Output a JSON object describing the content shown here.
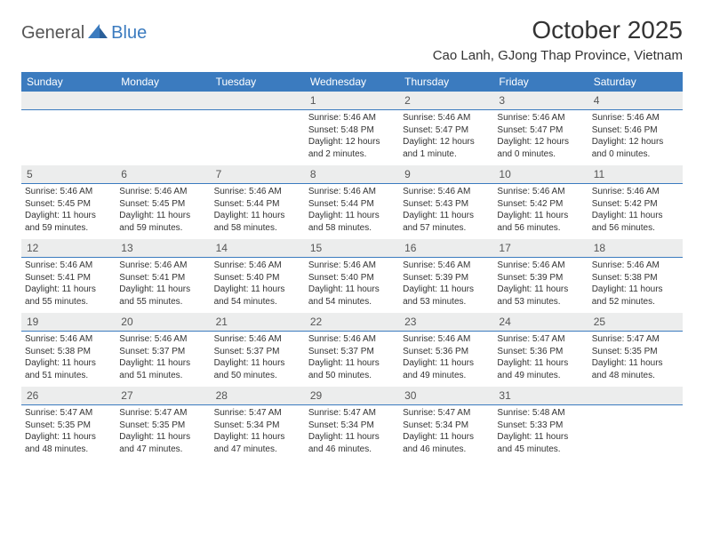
{
  "brand": {
    "general": "General",
    "blue": "Blue"
  },
  "title": "October 2025",
  "location": "Cao Lanh, GJong Thap Province, Vietnam",
  "colors": {
    "header_bg": "#3b7bbf",
    "header_fg": "#ffffff",
    "daynum_bg": "#eceded",
    "text": "#333333",
    "rule": "#3b7bbf"
  },
  "day_labels": [
    "Sunday",
    "Monday",
    "Tuesday",
    "Wednesday",
    "Thursday",
    "Friday",
    "Saturday"
  ],
  "weeks": [
    [
      null,
      null,
      null,
      {
        "n": "1",
        "sr": "5:46 AM",
        "ss": "5:48 PM",
        "dl": "12 hours and 2 minutes."
      },
      {
        "n": "2",
        "sr": "5:46 AM",
        "ss": "5:47 PM",
        "dl": "12 hours and 1 minute."
      },
      {
        "n": "3",
        "sr": "5:46 AM",
        "ss": "5:47 PM",
        "dl": "12 hours and 0 minutes."
      },
      {
        "n": "4",
        "sr": "5:46 AM",
        "ss": "5:46 PM",
        "dl": "12 hours and 0 minutes."
      }
    ],
    [
      {
        "n": "5",
        "sr": "5:46 AM",
        "ss": "5:45 PM",
        "dl": "11 hours and 59 minutes."
      },
      {
        "n": "6",
        "sr": "5:46 AM",
        "ss": "5:45 PM",
        "dl": "11 hours and 59 minutes."
      },
      {
        "n": "7",
        "sr": "5:46 AM",
        "ss": "5:44 PM",
        "dl": "11 hours and 58 minutes."
      },
      {
        "n": "8",
        "sr": "5:46 AM",
        "ss": "5:44 PM",
        "dl": "11 hours and 58 minutes."
      },
      {
        "n": "9",
        "sr": "5:46 AM",
        "ss": "5:43 PM",
        "dl": "11 hours and 57 minutes."
      },
      {
        "n": "10",
        "sr": "5:46 AM",
        "ss": "5:42 PM",
        "dl": "11 hours and 56 minutes."
      },
      {
        "n": "11",
        "sr": "5:46 AM",
        "ss": "5:42 PM",
        "dl": "11 hours and 56 minutes."
      }
    ],
    [
      {
        "n": "12",
        "sr": "5:46 AM",
        "ss": "5:41 PM",
        "dl": "11 hours and 55 minutes."
      },
      {
        "n": "13",
        "sr": "5:46 AM",
        "ss": "5:41 PM",
        "dl": "11 hours and 55 minutes."
      },
      {
        "n": "14",
        "sr": "5:46 AM",
        "ss": "5:40 PM",
        "dl": "11 hours and 54 minutes."
      },
      {
        "n": "15",
        "sr": "5:46 AM",
        "ss": "5:40 PM",
        "dl": "11 hours and 54 minutes."
      },
      {
        "n": "16",
        "sr": "5:46 AM",
        "ss": "5:39 PM",
        "dl": "11 hours and 53 minutes."
      },
      {
        "n": "17",
        "sr": "5:46 AM",
        "ss": "5:39 PM",
        "dl": "11 hours and 53 minutes."
      },
      {
        "n": "18",
        "sr": "5:46 AM",
        "ss": "5:38 PM",
        "dl": "11 hours and 52 minutes."
      }
    ],
    [
      {
        "n": "19",
        "sr": "5:46 AM",
        "ss": "5:38 PM",
        "dl": "11 hours and 51 minutes."
      },
      {
        "n": "20",
        "sr": "5:46 AM",
        "ss": "5:37 PM",
        "dl": "11 hours and 51 minutes."
      },
      {
        "n": "21",
        "sr": "5:46 AM",
        "ss": "5:37 PM",
        "dl": "11 hours and 50 minutes."
      },
      {
        "n": "22",
        "sr": "5:46 AM",
        "ss": "5:37 PM",
        "dl": "11 hours and 50 minutes."
      },
      {
        "n": "23",
        "sr": "5:46 AM",
        "ss": "5:36 PM",
        "dl": "11 hours and 49 minutes."
      },
      {
        "n": "24",
        "sr": "5:47 AM",
        "ss": "5:36 PM",
        "dl": "11 hours and 49 minutes."
      },
      {
        "n": "25",
        "sr": "5:47 AM",
        "ss": "5:35 PM",
        "dl": "11 hours and 48 minutes."
      }
    ],
    [
      {
        "n": "26",
        "sr": "5:47 AM",
        "ss": "5:35 PM",
        "dl": "11 hours and 48 minutes."
      },
      {
        "n": "27",
        "sr": "5:47 AM",
        "ss": "5:35 PM",
        "dl": "11 hours and 47 minutes."
      },
      {
        "n": "28",
        "sr": "5:47 AM",
        "ss": "5:34 PM",
        "dl": "11 hours and 47 minutes."
      },
      {
        "n": "29",
        "sr": "5:47 AM",
        "ss": "5:34 PM",
        "dl": "11 hours and 46 minutes."
      },
      {
        "n": "30",
        "sr": "5:47 AM",
        "ss": "5:34 PM",
        "dl": "11 hours and 46 minutes."
      },
      {
        "n": "31",
        "sr": "5:48 AM",
        "ss": "5:33 PM",
        "dl": "11 hours and 45 minutes."
      },
      null
    ]
  ],
  "labels": {
    "sunrise": "Sunrise:",
    "sunset": "Sunset:",
    "daylight": "Daylight:"
  }
}
